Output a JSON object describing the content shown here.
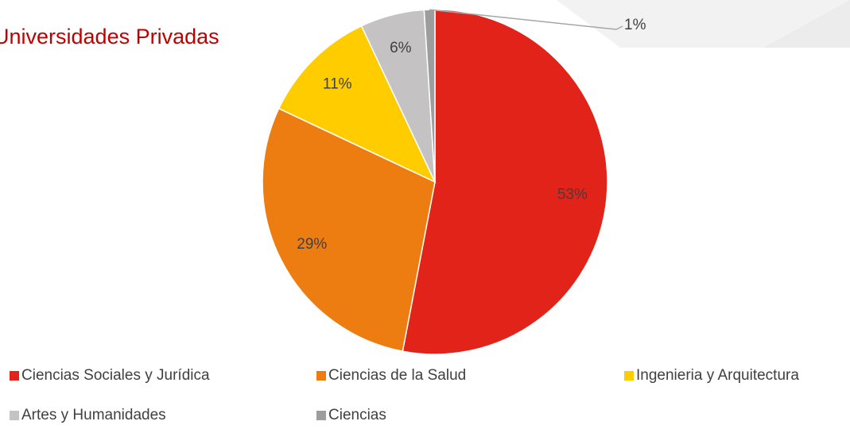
{
  "chart_data": {
    "type": "pie",
    "title": "Universidades Privadas",
    "categories": [
      "Ciencias Sociales y Jurídica",
      "Ciencias de la Salud",
      "Ingenieria y Arquitectura",
      "Artes y Humanidades",
      "Ciencias"
    ],
    "values": [
      53,
      29,
      11,
      6,
      1
    ],
    "value_labels": [
      "53%",
      "29%",
      "11%",
      "6%",
      "1%"
    ],
    "colors": [
      "#e2231a",
      "#ee7d11",
      "#ffcc00",
      "#c4c2c3",
      "#9d9d9d"
    ],
    "legend": "bottom"
  }
}
